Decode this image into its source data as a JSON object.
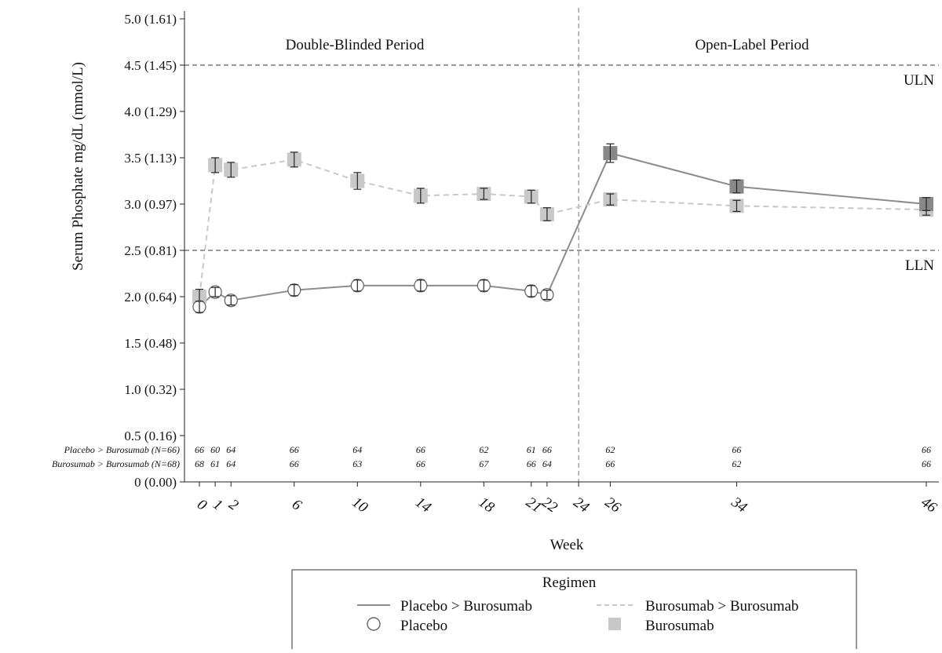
{
  "chart_data": {
    "type": "line",
    "ylabel": "Serum Phosphate mg/dL (mmol/L)",
    "xlabel": "Week",
    "ylim": [
      0,
      5.0
    ],
    "xlim": [
      -1,
      46.5
    ],
    "yticks": [
      {
        "value": 0,
        "label": "0 (0.00)"
      },
      {
        "value": 0.5,
        "label": "0.5 (0.16)"
      },
      {
        "value": 1.0,
        "label": "1.0 (0.32)"
      },
      {
        "value": 1.5,
        "label": "1.5 (0.48)"
      },
      {
        "value": 2.0,
        "label": "2.0 (0.64)"
      },
      {
        "value": 2.5,
        "label": "2.5 (0.81)"
      },
      {
        "value": 3.0,
        "label": "3.0 (0.97)"
      },
      {
        "value": 3.5,
        "label": "3.5 (1.13)"
      },
      {
        "value": 4.0,
        "label": "4.0 (1.29)"
      },
      {
        "value": 4.5,
        "label": "4.5 (1.45)"
      },
      {
        "value": 5.0,
        "label": "5.0 (1.61)"
      }
    ],
    "xticks": [
      {
        "value": 0,
        "label": "0"
      },
      {
        "value": 1,
        "label": "1"
      },
      {
        "value": 2,
        "label": "2"
      },
      {
        "value": 6,
        "label": "6"
      },
      {
        "value": 10,
        "label": "10"
      },
      {
        "value": 14,
        "label": "14"
      },
      {
        "value": 18,
        "label": "18"
      },
      {
        "value": 21,
        "label": "21"
      },
      {
        "value": 22,
        "label": "22"
      },
      {
        "value": 24,
        "label": "24"
      },
      {
        "value": 26,
        "label": "26"
      },
      {
        "value": 34,
        "label": "34"
      },
      {
        "value": 46,
        "label": "46"
      }
    ],
    "reference_lines": [
      {
        "axis": "y",
        "value": 4.5,
        "label": "ULN"
      },
      {
        "axis": "y",
        "value": 2.5,
        "label": "LLN"
      },
      {
        "axis": "x",
        "value": 24,
        "label": ""
      }
    ],
    "period_labels": [
      "Double-Blinded Period",
      "Open-Label Period"
    ],
    "series": [
      {
        "name": "Placebo > Burosumab",
        "line_style": "solid",
        "color": "#8c8c8c",
        "points": [
          {
            "x": 0,
            "y": 1.89,
            "err": 0.06,
            "marker": "open-circle"
          },
          {
            "x": 1,
            "y": 2.05,
            "err": 0.05,
            "marker": "open-circle"
          },
          {
            "x": 2,
            "y": 1.96,
            "err": 0.05,
            "marker": "open-circle"
          },
          {
            "x": 6,
            "y": 2.07,
            "err": 0.06,
            "marker": "open-circle"
          },
          {
            "x": 10,
            "y": 2.12,
            "err": 0.06,
            "marker": "open-circle"
          },
          {
            "x": 14,
            "y": 2.12,
            "err": 0.06,
            "marker": "open-circle"
          },
          {
            "x": 18,
            "y": 2.12,
            "err": 0.06,
            "marker": "open-circle"
          },
          {
            "x": 21,
            "y": 2.06,
            "err": 0.06,
            "marker": "open-circle"
          },
          {
            "x": 22,
            "y": 2.02,
            "err": 0.05,
            "marker": "open-circle"
          },
          {
            "x": 26,
            "y": 3.55,
            "err": 0.1,
            "marker": "dark-square"
          },
          {
            "x": 34,
            "y": 3.19,
            "err": 0.07,
            "marker": "dark-square"
          },
          {
            "x": 46,
            "y": 3.0,
            "err": 0.07,
            "marker": "dark-square"
          }
        ]
      },
      {
        "name": "Burosumab > Burosumab",
        "line_style": "dashed",
        "color": "#c8c8c8",
        "points": [
          {
            "x": 0,
            "y": 2.0,
            "err": 0.08,
            "marker": "square"
          },
          {
            "x": 1,
            "y": 3.42,
            "err": 0.08,
            "marker": "square"
          },
          {
            "x": 2,
            "y": 3.37,
            "err": 0.08,
            "marker": "square"
          },
          {
            "x": 6,
            "y": 3.48,
            "err": 0.08,
            "marker": "square"
          },
          {
            "x": 10,
            "y": 3.25,
            "err": 0.09,
            "marker": "square"
          },
          {
            "x": 14,
            "y": 3.09,
            "err": 0.08,
            "marker": "square"
          },
          {
            "x": 18,
            "y": 3.11,
            "err": 0.06,
            "marker": "square"
          },
          {
            "x": 21,
            "y": 3.08,
            "err": 0.07,
            "marker": "square"
          },
          {
            "x": 22,
            "y": 2.89,
            "err": 0.07,
            "marker": "square"
          },
          {
            "x": 26,
            "y": 3.05,
            "err": 0.06,
            "marker": "square"
          },
          {
            "x": 34,
            "y": 2.98,
            "err": 0.06,
            "marker": "square"
          },
          {
            "x": 46,
            "y": 2.94,
            "err": 0.06,
            "marker": "square"
          }
        ]
      }
    ],
    "at_risk": {
      "rows": [
        {
          "label": "Placebo > Burosumab (N=66)",
          "values": [
            {
              "x": 0,
              "n": "66"
            },
            {
              "x": 1,
              "n": "60"
            },
            {
              "x": 2,
              "n": "64"
            },
            {
              "x": 6,
              "n": "66"
            },
            {
              "x": 10,
              "n": "64"
            },
            {
              "x": 14,
              "n": "66"
            },
            {
              "x": 18,
              "n": "62"
            },
            {
              "x": 21,
              "n": "61"
            },
            {
              "x": 22,
              "n": "66"
            },
            {
              "x": 26,
              "n": "62"
            },
            {
              "x": 34,
              "n": "66"
            },
            {
              "x": 46,
              "n": "66"
            }
          ]
        },
        {
          "label": "Burosumab > Burosumab (N=68)",
          "values": [
            {
              "x": 0,
              "n": "68"
            },
            {
              "x": 1,
              "n": "61"
            },
            {
              "x": 2,
              "n": "64"
            },
            {
              "x": 6,
              "n": "66"
            },
            {
              "x": 10,
              "n": "63"
            },
            {
              "x": 14,
              "n": "66"
            },
            {
              "x": 18,
              "n": "67"
            },
            {
              "x": 21,
              "n": "66"
            },
            {
              "x": 22,
              "n": "64"
            },
            {
              "x": 26,
              "n": "66"
            },
            {
              "x": 34,
              "n": "62"
            },
            {
              "x": 46,
              "n": "66"
            }
          ]
        }
      ]
    },
    "legend": {
      "title": "Regimen",
      "placement": "bottom",
      "entries": [
        {
          "label": "Placebo > Burosumab",
          "kind": "solid-line"
        },
        {
          "label": "Burosumab > Burosumab",
          "kind": "dashed-line"
        },
        {
          "label": "Placebo",
          "kind": "open-circle"
        },
        {
          "label": "Burosumab",
          "kind": "square"
        }
      ]
    },
    "colors": {
      "solid_line": "#8c8c8c",
      "dashed_line": "#c8c8c8",
      "square_fill": "#c8c8c8",
      "dark_square_fill": "#888888",
      "ref_line": "#333333"
    }
  }
}
